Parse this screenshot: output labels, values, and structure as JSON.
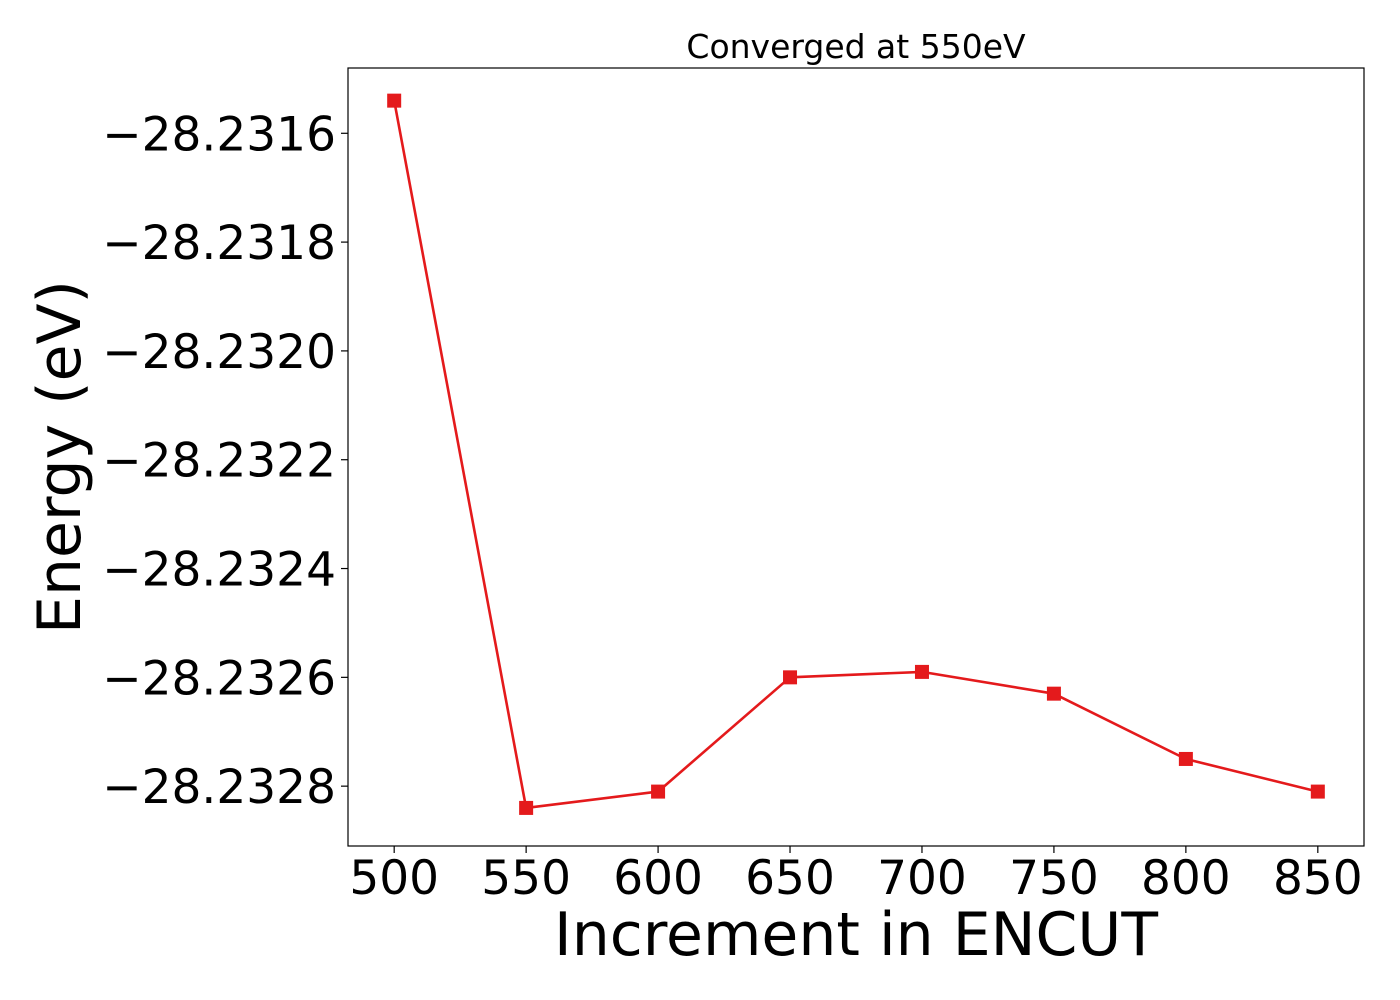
{
  "chart_data": {
    "type": "line",
    "title": "Converged at 550eV",
    "xlabel": "Increment in ENCUT",
    "ylabel": "Energy (eV)",
    "x": [
      500,
      550,
      600,
      650,
      700,
      750,
      800,
      850
    ],
    "series": [
      {
        "values": [
          -28.23154,
          -28.23284,
          -28.23281,
          -28.2326,
          -28.23259,
          -28.23263,
          -28.23275,
          -28.23281
        ],
        "color": "#e41a1c",
        "marker": "square"
      }
    ],
    "xticks": [
      500,
      550,
      600,
      650,
      700,
      750,
      800,
      850
    ],
    "xtick_labels": [
      "500",
      "550",
      "600",
      "650",
      "700",
      "750",
      "800",
      "850"
    ],
    "yticks": [
      -28.2316,
      -28.2318,
      -28.232,
      -28.2322,
      -28.2324,
      -28.2326,
      -28.2328
    ],
    "ytick_labels": [
      "−28.2316",
      "−28.2318",
      "−28.2320",
      "−28.2322",
      "−28.2324",
      "−28.2326",
      "−28.2328"
    ],
    "xlim": [
      482.5,
      867.5
    ],
    "ylim": [
      -28.23291,
      -28.23148
    ],
    "grid": false,
    "legend": "none"
  }
}
